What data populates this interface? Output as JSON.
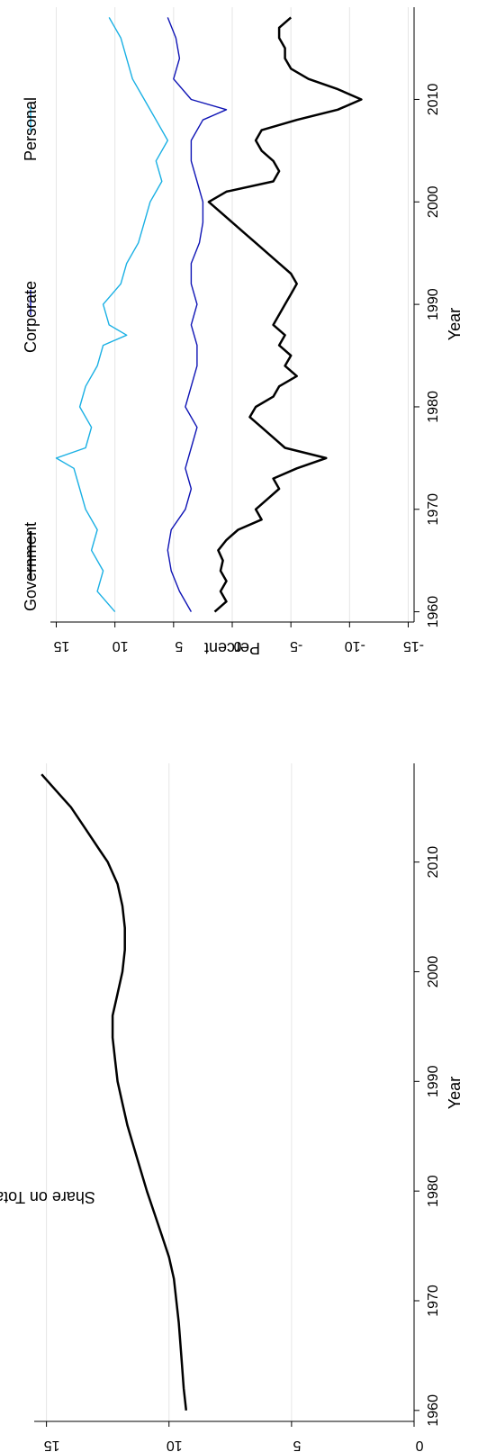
{
  "chart_data": [
    {
      "type": "line",
      "xlabel": "Year",
      "ylabel": "Share on Total, Percent",
      "xlim": [
        1959,
        2019
      ],
      "ylim": [
        0,
        15.5
      ],
      "xticks": [
        1960,
        1970,
        1980,
        1990,
        2000,
        2010
      ],
      "yticks": [
        0,
        5,
        10,
        15
      ],
      "grid": true,
      "series": [
        {
          "name": "",
          "color": "#000000",
          "x": [
            1960,
            1962,
            1965,
            1968,
            1970,
            1972,
            1974,
            1976,
            1978,
            1980,
            1983,
            1986,
            1988,
            1990,
            1992,
            1994,
            1996,
            1998,
            2000,
            2002,
            2004,
            2006,
            2008,
            2010,
            2011,
            2013,
            2015,
            2016,
            2017,
            2018
          ],
          "y": [
            9.3,
            9.4,
            9.5,
            9.6,
            9.7,
            9.8,
            10.0,
            10.3,
            10.6,
            10.9,
            11.3,
            11.7,
            11.9,
            12.1,
            12.2,
            12.3,
            12.3,
            12.1,
            11.9,
            11.8,
            11.8,
            11.9,
            12.1,
            12.5,
            12.8,
            13.4,
            14.0,
            14.4,
            14.8,
            15.2
          ]
        }
      ]
    },
    {
      "type": "line",
      "xlabel": "Year",
      "ylabel": "Percent",
      "xlim": [
        1959,
        2019
      ],
      "ylim": [
        -15.5,
        15.5
      ],
      "xticks": [
        1960,
        1970,
        1980,
        1990,
        2000,
        2010
      ],
      "yticks": [
        -15,
        -10,
        -5,
        0,
        5,
        10,
        15
      ],
      "ytick_labels": [
        "-15",
        "-10",
        "-5",
        "0",
        "5",
        "10",
        "15"
      ],
      "grid": true,
      "legend": "top",
      "series": [
        {
          "name": "Government",
          "color": "#000000",
          "x": [
            1960,
            1961,
            1962,
            1963,
            1964,
            1965,
            1966,
            1967,
            1968,
            1969,
            1970,
            1971,
            1972,
            1973,
            1974,
            1975,
            1976,
            1977,
            1978,
            1979,
            1980,
            1981,
            1982,
            1983,
            1984,
            1985,
            1986,
            1987,
            1988,
            1989,
            1990,
            1991,
            1992,
            1993,
            1994,
            1995,
            1996,
            1997,
            1998,
            1999,
            2000,
            2001,
            2002,
            2003,
            2004,
            2005,
            2006,
            2007,
            2008,
            2009,
            2010,
            2011,
            2012,
            2013,
            2014,
            2015,
            2016,
            2017,
            2018
          ],
          "y": [
            1.5,
            0.5,
            1.0,
            0.5,
            1.0,
            0.8,
            1.2,
            0.5,
            -0.5,
            -2.5,
            -2.0,
            -3.0,
            -4.0,
            -3.5,
            -5.5,
            -8.0,
            -4.5,
            -3.5,
            -2.5,
            -1.5,
            -2.0,
            -3.5,
            -4.0,
            -5.5,
            -4.5,
            -5.0,
            -4.0,
            -4.5,
            -3.5,
            -4.0,
            -4.5,
            -5.0,
            -5.5,
            -5.0,
            -4.0,
            -3.0,
            -2.0,
            -1.0,
            0.0,
            1.0,
            2.0,
            0.5,
            -3.5,
            -4.0,
            -3.5,
            -2.5,
            -2.0,
            -2.5,
            -5.5,
            -9.0,
            -11.0,
            -9.0,
            -6.5,
            -5.0,
            -4.5,
            -4.5,
            -4.0,
            -4.0,
            -5.0
          ]
        },
        {
          "name": "Corporate",
          "color": "#0f14b5",
          "x": [
            1960,
            1962,
            1964,
            1966,
            1968,
            1970,
            1972,
            1974,
            1976,
            1978,
            1980,
            1982,
            1984,
            1986,
            1988,
            1990,
            1992,
            1994,
            1996,
            1998,
            2000,
            2002,
            2004,
            2006,
            2008,
            2009,
            2010,
            2012,
            2014,
            2016,
            2018
          ],
          "y": [
            3.5,
            4.5,
            5.2,
            5.5,
            5.2,
            4.0,
            3.5,
            4.0,
            3.5,
            3.0,
            4.0,
            3.5,
            3.0,
            3.0,
            3.5,
            3.0,
            3.5,
            3.5,
            2.8,
            2.5,
            2.5,
            3.0,
            3.5,
            3.5,
            2.5,
            0.5,
            3.5,
            5.0,
            4.5,
            4.8,
            5.5
          ]
        },
        {
          "name": "Personal",
          "color": "#1ab0e4",
          "x": [
            1960,
            1962,
            1964,
            1966,
            1968,
            1970,
            1972,
            1974,
            1975,
            1976,
            1978,
            1980,
            1982,
            1984,
            1986,
            1987,
            1988,
            1990,
            1992,
            1994,
            1996,
            1998,
            2000,
            2002,
            2004,
            2006,
            2008,
            2010,
            2012,
            2014,
            2016,
            2018
          ],
          "y": [
            10.0,
            11.5,
            11.0,
            12.0,
            11.5,
            12.5,
            13.0,
            13.5,
            15.0,
            12.5,
            12.0,
            13.0,
            12.5,
            11.5,
            11.0,
            9.0,
            10.5,
            11.0,
            9.5,
            9.0,
            8.0,
            7.5,
            7.0,
            6.0,
            6.5,
            5.5,
            6.5,
            7.5,
            8.5,
            9.0,
            9.5,
            10.5
          ]
        }
      ]
    }
  ]
}
